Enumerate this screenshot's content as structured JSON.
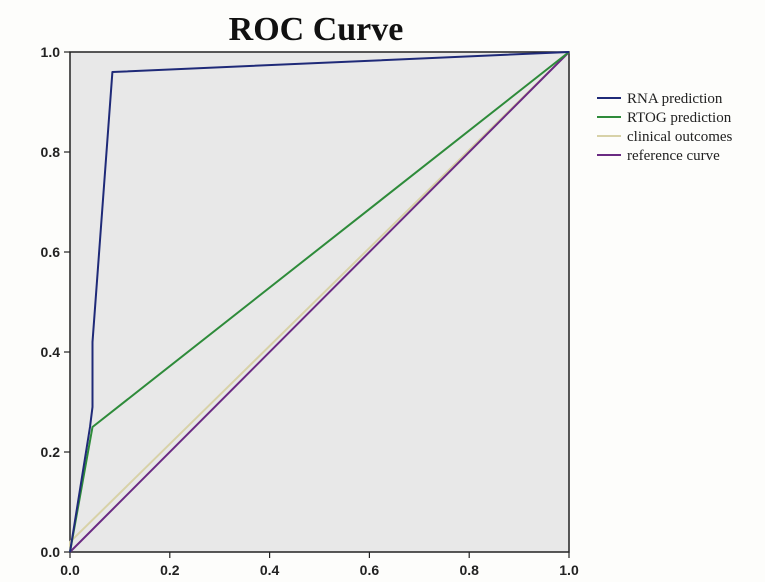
{
  "chart_data": {
    "type": "line",
    "title": "ROC Curve",
    "xlabel": "",
    "ylabel": "",
    "xlim": [
      0.0,
      1.0
    ],
    "ylim": [
      0.0,
      1.0
    ],
    "x_ticks": [
      "0.0",
      "0.2",
      "0.4",
      "0.6",
      "0.8",
      "1.0"
    ],
    "y_ticks": [
      "0.0",
      "0.2",
      "0.4",
      "0.6",
      "0.8",
      "1.0"
    ],
    "grid": false,
    "legend_position": "right",
    "plot_background": "#e8e8e8",
    "series": [
      {
        "name": "RNA prediction",
        "color": "#1f2a78",
        "points": [
          [
            0.0,
            0.0
          ],
          [
            0.04,
            0.25
          ],
          [
            0.045,
            0.29
          ],
          [
            0.045,
            0.42
          ],
          [
            0.085,
            0.96
          ],
          [
            1.0,
            1.0
          ]
        ]
      },
      {
        "name": "RTOG prediction",
        "color": "#2e8b3a",
        "points": [
          [
            0.0,
            0.0
          ],
          [
            0.045,
            0.25
          ],
          [
            1.0,
            1.0
          ]
        ]
      },
      {
        "name": "clinical outcomes",
        "color": "#d8d2a8",
        "points": [
          [
            0.0,
            0.0
          ],
          [
            0.0,
            0.02
          ],
          [
            1.0,
            1.0
          ]
        ]
      },
      {
        "name": "reference curve",
        "color": "#6a2a82",
        "points": [
          [
            0.0,
            0.0
          ],
          [
            1.0,
            1.0
          ]
        ]
      }
    ]
  }
}
